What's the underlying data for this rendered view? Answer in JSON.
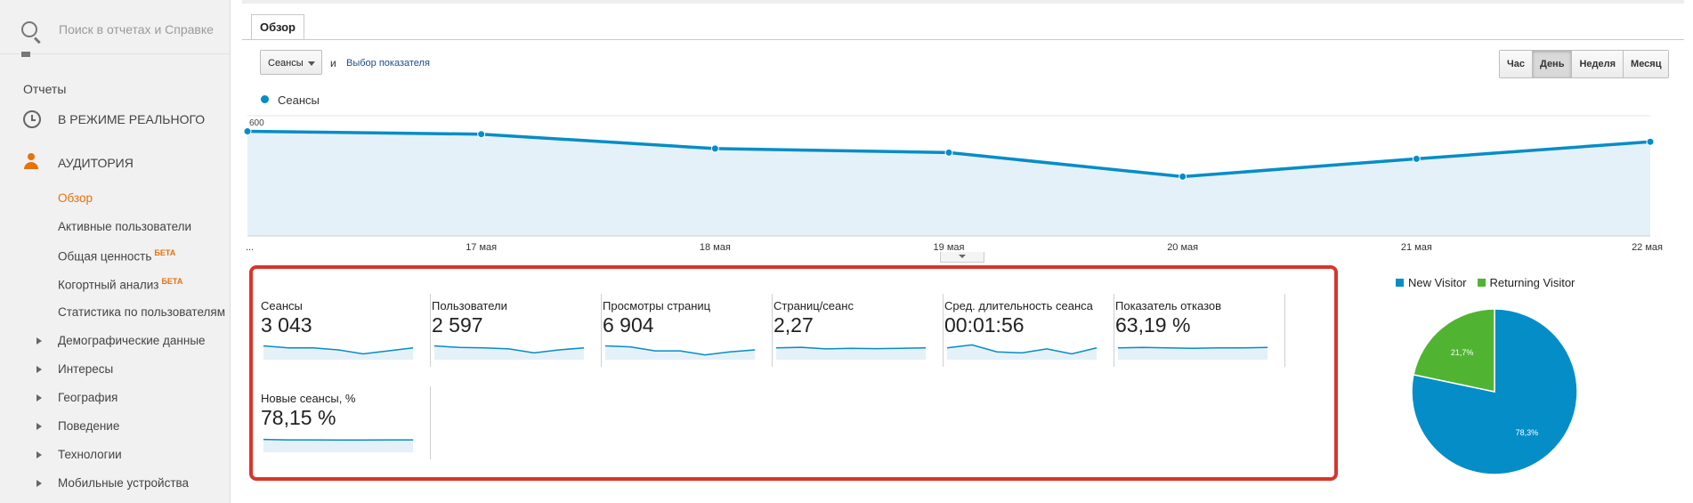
{
  "sidebar": {
    "search_placeholder": "Поиск в отчетах и Справке",
    "reports_label": "Отчеты",
    "realtime_label": "В РЕЖИМЕ РЕАЛЬНОГО",
    "audience_label": "АУДИТОРИЯ",
    "beta_label": "БЕТА",
    "items": [
      {
        "label": "Обзор"
      },
      {
        "label": "Активные пользователи"
      },
      {
        "label": "Общая ценность"
      },
      {
        "label": "Когортный анализ"
      },
      {
        "label": "Статистика по пользователям"
      },
      {
        "label": "Демографические данные"
      },
      {
        "label": "Интересы"
      },
      {
        "label": "География"
      },
      {
        "label": "Поведение"
      },
      {
        "label": "Технологии"
      },
      {
        "label": "Мобильные устройства"
      }
    ]
  },
  "main": {
    "tab_label": "Обзор",
    "metric_select": "Сеансы",
    "and_text": "и",
    "pick_metric_link": "Выбор показателя",
    "periods": [
      "Час",
      "День",
      "Неделя",
      "Месяц"
    ],
    "active_period": "День"
  },
  "chart_data": [
    {
      "type": "line",
      "series": [
        {
          "name": "Сеансы",
          "values": [
            522,
            508,
            436,
            416,
            296,
            385,
            470
          ]
        }
      ],
      "x": [
        "...",
        "17 мая",
        "18 мая",
        "19 мая",
        "20 мая",
        "21 мая",
        "22 мая"
      ],
      "y_ticks": [
        600,
        300
      ],
      "ylim": [
        0,
        600
      ],
      "color": "#058dc7",
      "fill": "#e5f1f9"
    },
    {
      "type": "pie",
      "labels": [
        "New Visitor",
        "Returning Visitor"
      ],
      "values": [
        78.3,
        21.7
      ],
      "data_labels": [
        "78,3%",
        "21,7%"
      ],
      "colors": [
        "#058dc7",
        "#50b432"
      ],
      "legend": "top"
    }
  ],
  "metrics": [
    {
      "label": "Сеансы",
      "value": "3 043",
      "spark": [
        6,
        5,
        5,
        4,
        2,
        3.5,
        5
      ]
    },
    {
      "label": "Пользователи",
      "value": "2 597",
      "spark": [
        6,
        5.2,
        5,
        4.5,
        2.5,
        4,
        5
      ]
    },
    {
      "label": "Просмотры страниц",
      "value": "6 904",
      "spark": [
        6,
        5.5,
        3.5,
        3.5,
        1.5,
        3,
        4
      ]
    },
    {
      "label": "Страниц/сеанс",
      "value": "2,27",
      "spark": [
        5,
        5.3,
        4.5,
        4.8,
        4.6,
        4.8,
        5
      ]
    },
    {
      "label": "Сред. длительность сеанса",
      "value": "00:01:56",
      "spark": [
        5,
        6.5,
        3,
        2.5,
        4.5,
        2,
        5
      ]
    },
    {
      "label": "Показатель отказов",
      "value": "63,19 %",
      "spark": [
        5,
        5.2,
        5,
        4.8,
        5,
        5,
        5.2
      ]
    },
    {
      "label": "Новые сеансы, %",
      "value": "78,15 %",
      "spark": [
        5.5,
        5.3,
        5.3,
        5.2,
        5.2,
        5.3,
        5.3
      ]
    }
  ]
}
